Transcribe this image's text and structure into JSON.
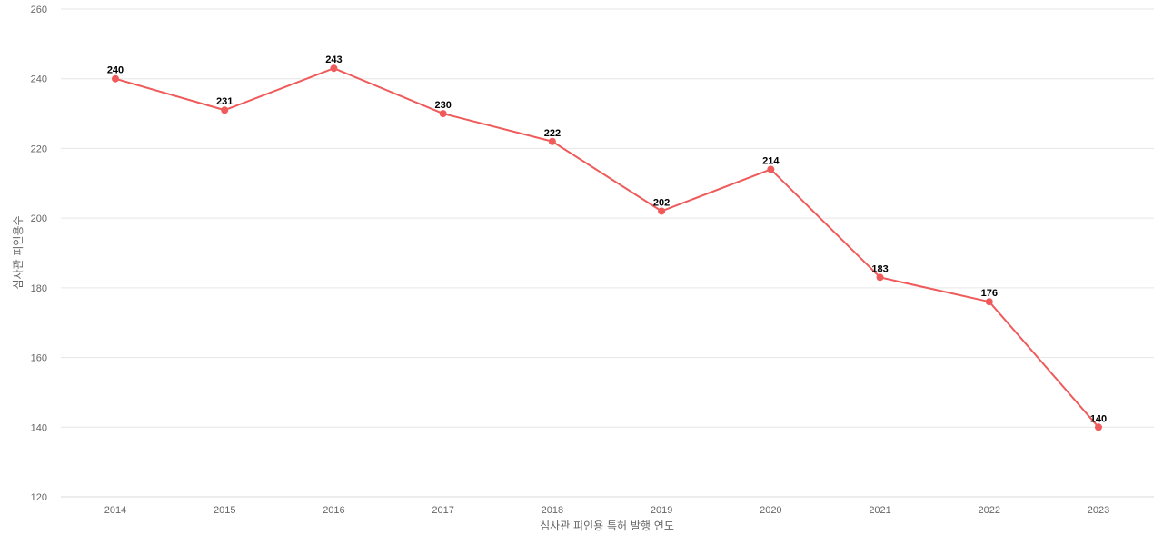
{
  "chart_data": {
    "type": "line",
    "title": "",
    "xlabel": "심사관 피인용 특허 발행 연도",
    "ylabel": "심사관 피인용수",
    "categories": [
      "2014",
      "2015",
      "2016",
      "2017",
      "2018",
      "2019",
      "2020",
      "2021",
      "2022",
      "2023"
    ],
    "series": [
      {
        "values": [
          240,
          231,
          243,
          230,
          222,
          202,
          214,
          183,
          176,
          140
        ]
      }
    ],
    "ylim": [
      120,
      260
    ],
    "yticks": [
      120,
      140,
      160,
      180,
      200,
      220,
      240,
      260
    ],
    "grid": true,
    "data_labels": true
  },
  "colors": {
    "line": "#ef5b5b",
    "grid": "#e6e6e6",
    "tick_text": "#666666",
    "label_text": "#000000"
  }
}
